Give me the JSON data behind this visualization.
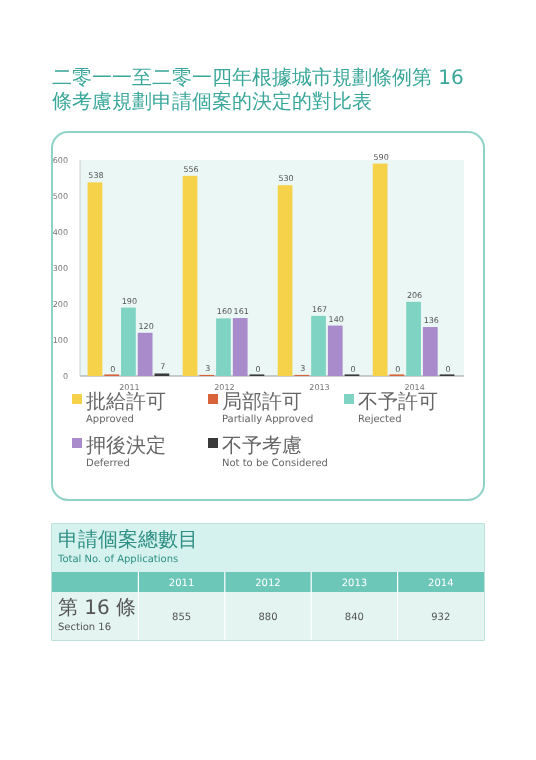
{
  "chart_data": {
    "type": "bar",
    "title": "二零一一至二零一四年根據城市規劃條例第 16 條考慮規劃申請個案的決定的對比表",
    "categories": [
      "2011",
      "2012",
      "2013",
      "2014"
    ],
    "series": [
      {
        "name": "批給許可\nApproved",
        "color": "#f5d24a",
        "values": [
          538,
          556,
          530,
          590
        ]
      },
      {
        "name": "局部許可\nPartially Approved",
        "color": "#d9643a",
        "values": [
          0,
          3,
          3,
          0
        ]
      },
      {
        "name": "不予許可\nRejected",
        "color": "#7fd3c3",
        "values": [
          190,
          160,
          167,
          206
        ]
      },
      {
        "name": "押後決定\nDeferred",
        "color": "#a98bcc",
        "values": [
          120,
          161,
          140,
          136
        ]
      },
      {
        "name": "不予考慮\nNot to be Considered",
        "color": "#3a3a3a",
        "values": [
          7,
          0,
          0,
          0
        ]
      }
    ],
    "ylim": [
      0,
      600
    ],
    "yticks": [
      0,
      100,
      200,
      300,
      400,
      500,
      600
    ],
    "data_labels": true,
    "legend": "bottom",
    "annotations": [
      "申請個案總數目\nTotal No. of Applications",
      "第 16 條\nSection 16",
      "855",
      "880",
      "840",
      "932"
    ]
  }
}
